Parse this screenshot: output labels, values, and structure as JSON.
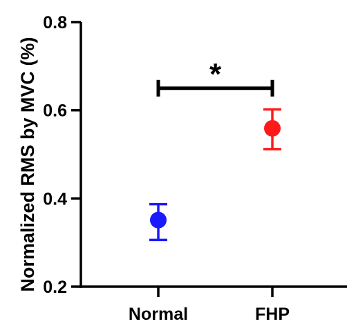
{
  "chart_data": {
    "type": "scatter",
    "title": "",
    "xlabel": "",
    "ylabel": "Normalized RMS  by MVC (%)",
    "ylim": [
      0.2,
      0.8
    ],
    "yticks": [
      "0.2",
      "0.4",
      "0.6",
      "0.8"
    ],
    "ytick_values": [
      0.2,
      0.4,
      0.6,
      0.8
    ],
    "categories": [
      "Normal",
      "FHP"
    ],
    "points": [
      {
        "category": "Normal",
        "mean": 0.351,
        "lower": 0.306,
        "upper": 0.387,
        "color": "#1a1aff"
      },
      {
        "category": "FHP",
        "mean": 0.559,
        "lower": 0.512,
        "upper": 0.602,
        "color": "#ff1a1a"
      }
    ],
    "grid": false,
    "annotations": [
      {
        "type": "significance-bracket",
        "between": [
          "Normal",
          "FHP"
        ],
        "label": "*",
        "y": 0.65
      }
    ]
  }
}
